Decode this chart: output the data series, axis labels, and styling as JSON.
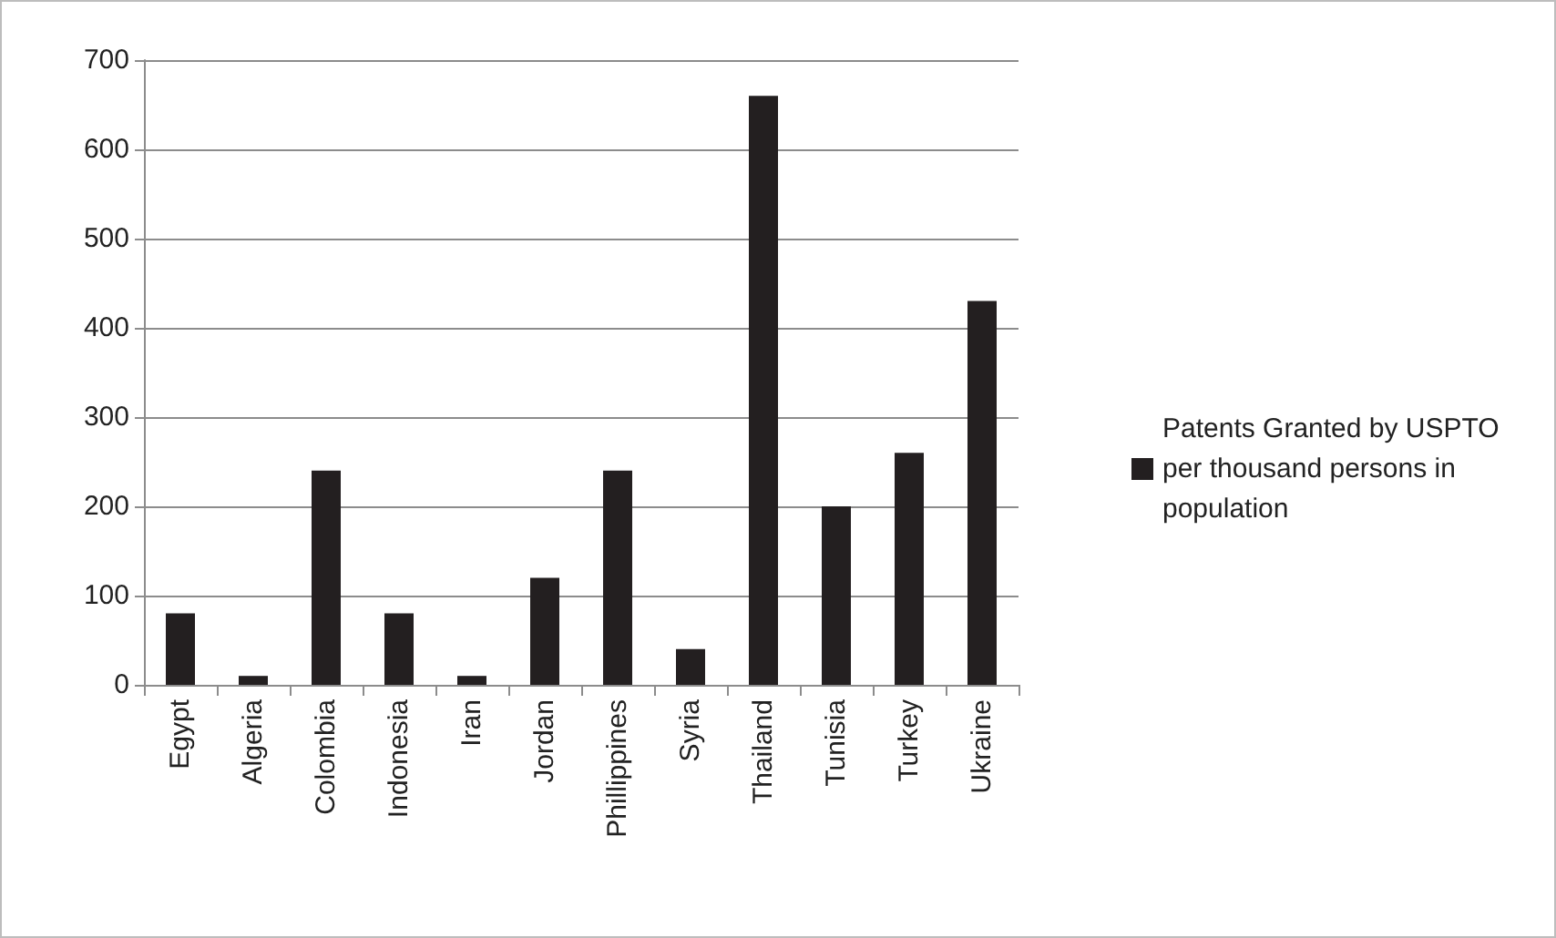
{
  "chart_data": {
    "type": "bar",
    "categories": [
      "Egypt",
      "Algeria",
      "Colombia",
      "Indonesia",
      "Iran",
      "Jordan",
      "Phillippines",
      "Syria",
      "Thailand",
      "Tunisia",
      "Turkey",
      "Ukraine"
    ],
    "series": [
      {
        "name": "Patents Granted by USPTO per thousand persons in population",
        "color": "#231f20",
        "values": [
          80,
          10,
          240,
          80,
          10,
          120,
          240,
          40,
          660,
          200,
          260,
          430
        ]
      }
    ],
    "ylim": [
      0,
      700
    ],
    "yticks": [
      0,
      100,
      200,
      300,
      400,
      500,
      600,
      700
    ],
    "grid": "y",
    "legend": "right"
  }
}
